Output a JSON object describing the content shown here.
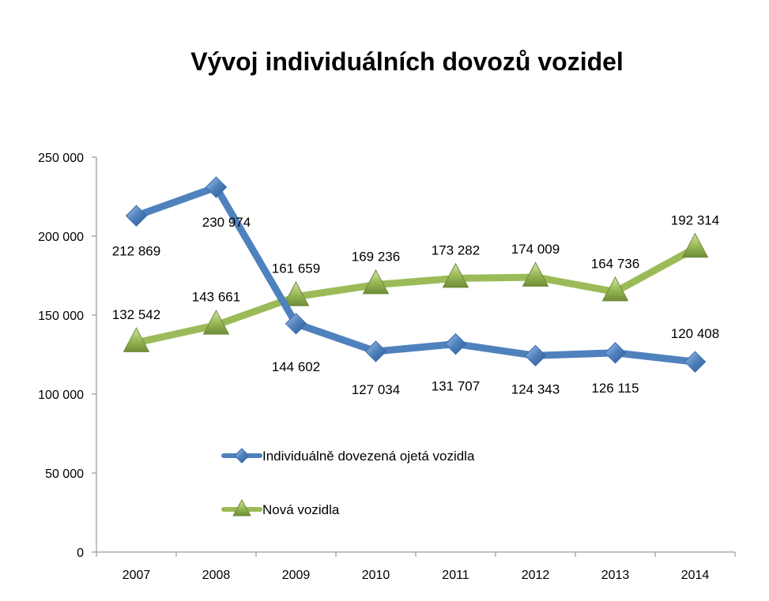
{
  "chart_data": {
    "type": "line",
    "title": "Vývoj individuálních dovozů vozidel",
    "xlabel": "",
    "ylabel": "",
    "categories": [
      "2007",
      "2008",
      "2009",
      "2010",
      "2011",
      "2012",
      "2013",
      "2014"
    ],
    "ylim": [
      0,
      250000
    ],
    "yticks": [
      0,
      50000,
      100000,
      150000,
      200000,
      250000
    ],
    "ytick_labels": [
      "0",
      "50 000",
      "100 000",
      "150 000",
      "200 000",
      "250 000"
    ],
    "grid": false,
    "legend_position": "center-left inside plot",
    "series": [
      {
        "name": "Individuálně dovezená ojetá vozidla",
        "color": "#4f81bd",
        "marker": "diamond",
        "values": [
          212869,
          230974,
          144602,
          127034,
          131707,
          124343,
          126115,
          120408
        ],
        "labels": [
          "212 869",
          "230 974",
          "144 602",
          "127 034",
          "131 707",
          "124 343",
          "126 115",
          "120 408"
        ]
      },
      {
        "name": "Nová vozidla",
        "color": "#9bbb59",
        "marker": "triangle",
        "values": [
          132542,
          143661,
          161659,
          169236,
          173282,
          174009,
          164736,
          192314
        ],
        "labels": [
          "132 542",
          "143 661",
          "161 659",
          "169 236",
          "173 282",
          "174 009",
          "164 736",
          "192 314"
        ]
      }
    ]
  }
}
